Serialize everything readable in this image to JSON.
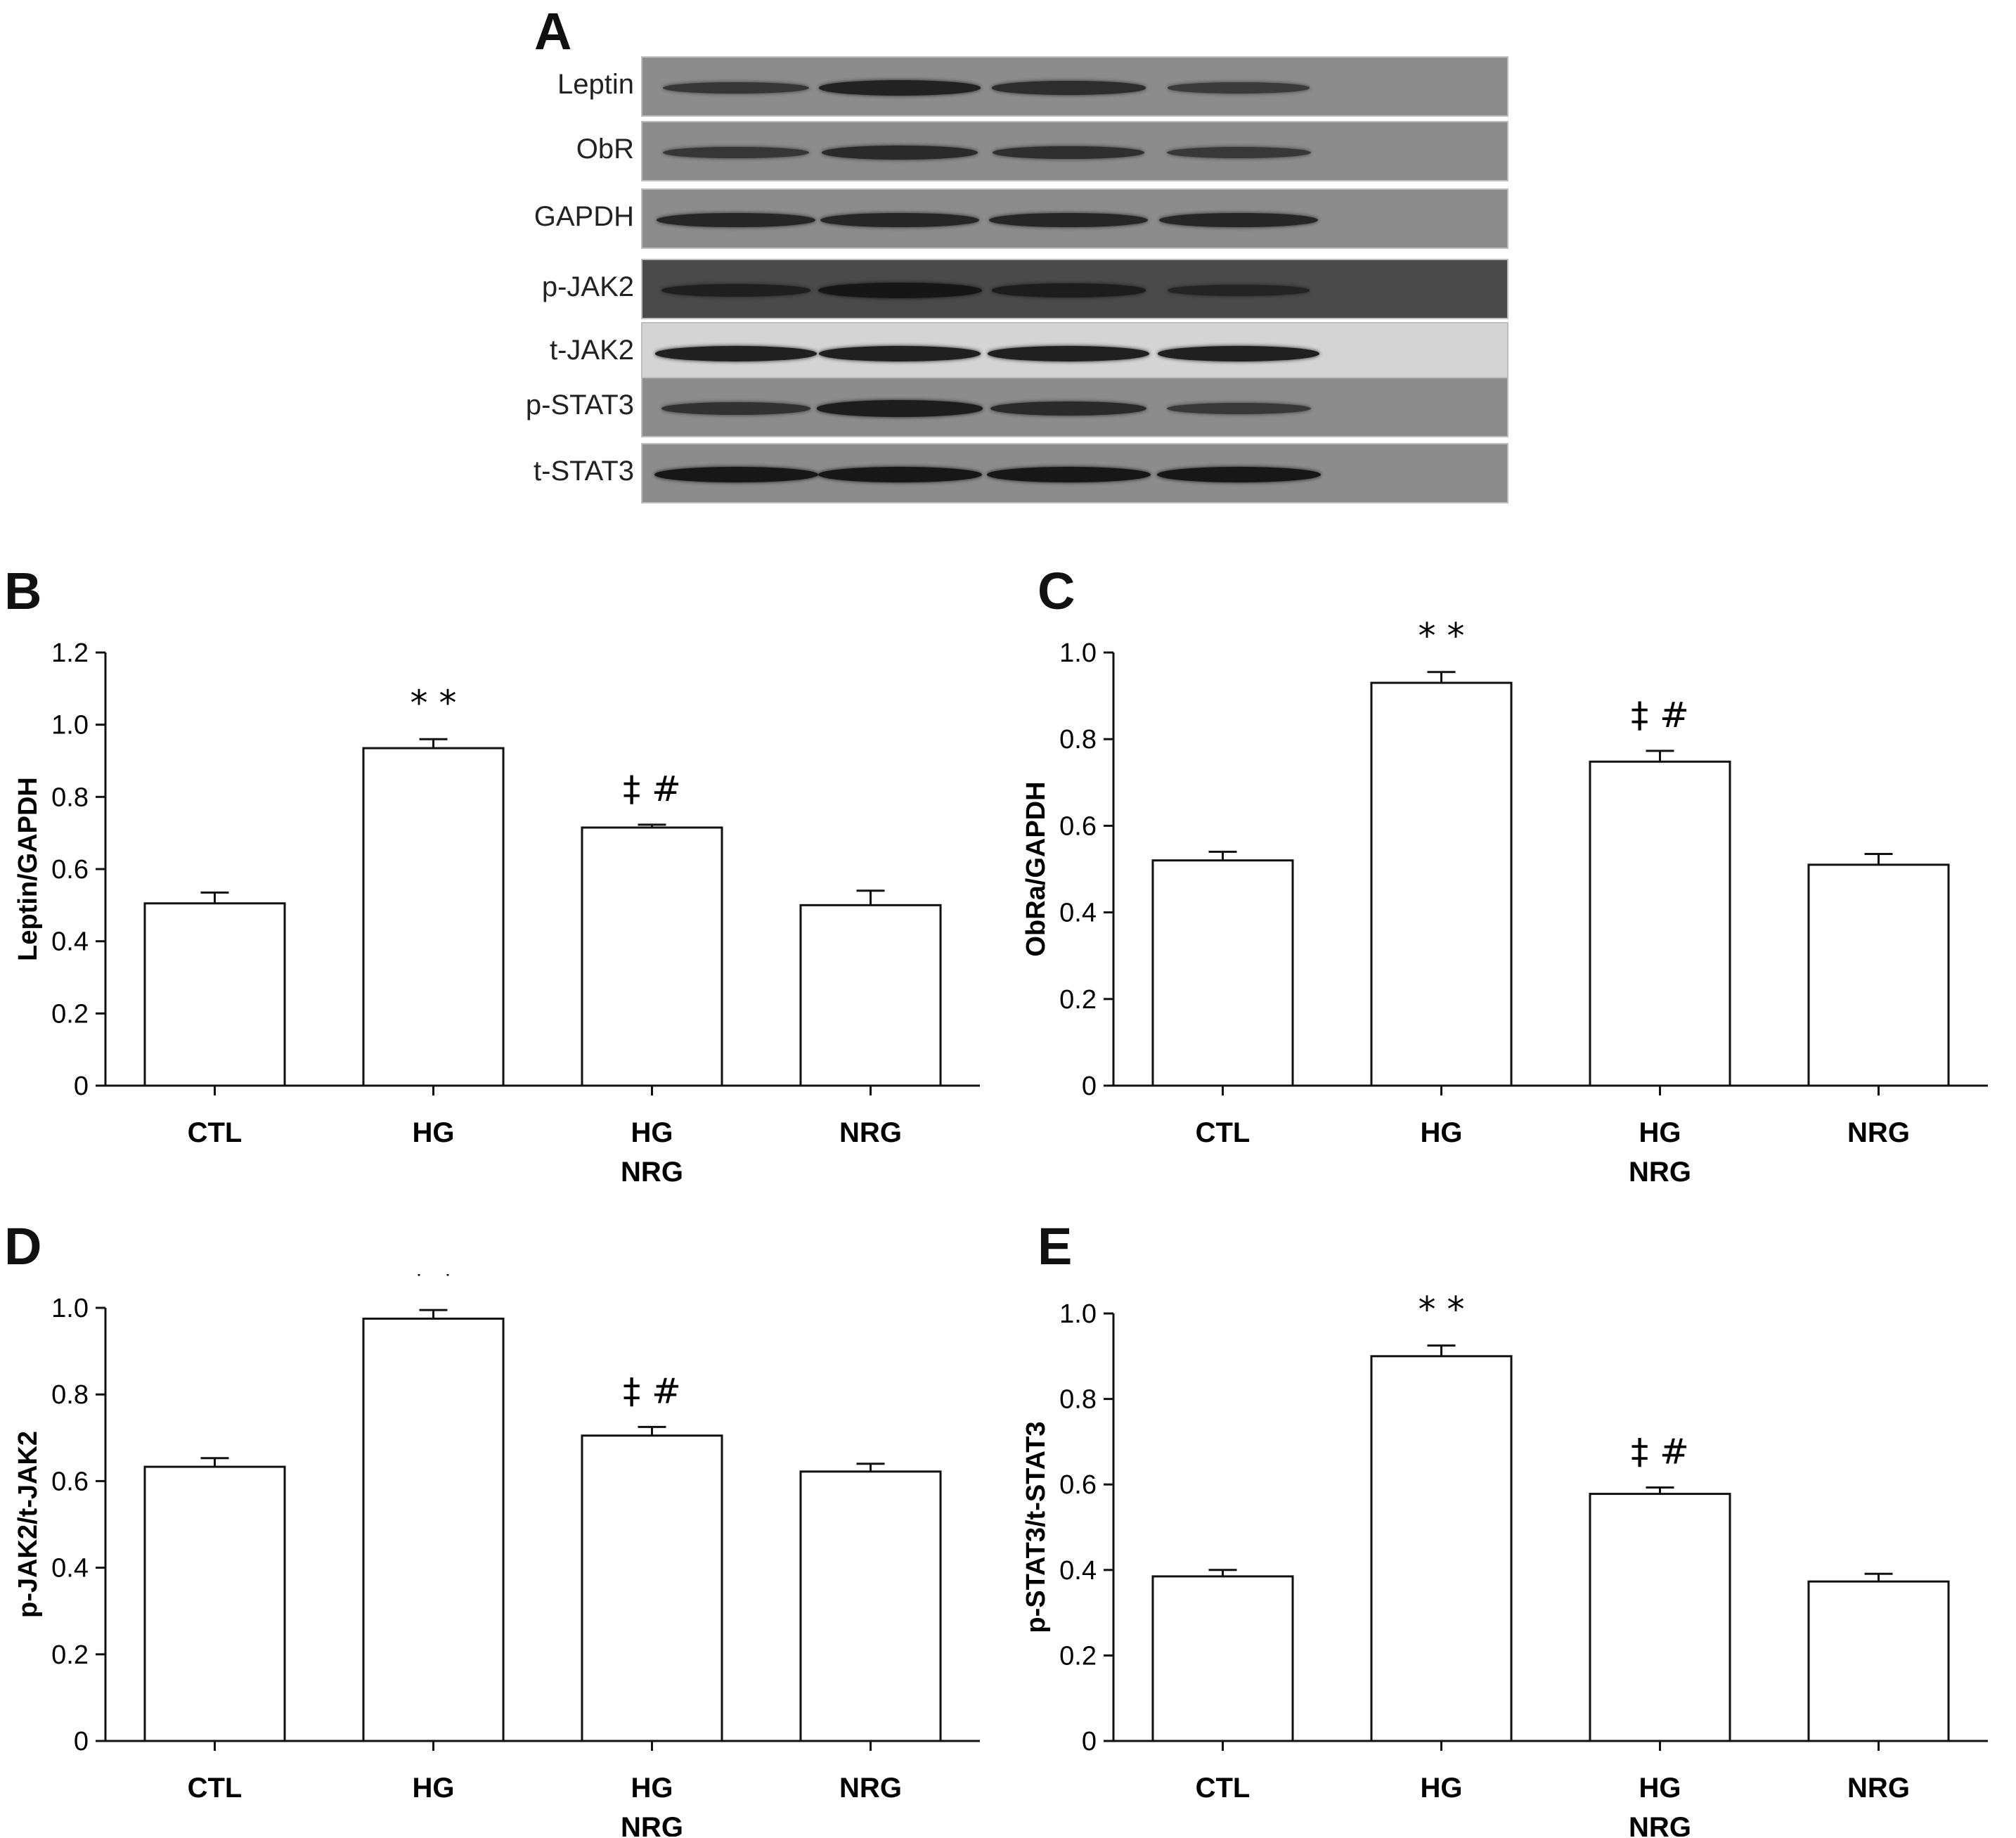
{
  "panel_letters": {
    "A": "A",
    "B": "B",
    "C": "C",
    "D": "D",
    "E": "E"
  },
  "blot": {
    "rows": [
      {
        "label": "Leptin",
        "background": "#8c8c8c",
        "band_color": "#1a1a1a",
        "intensity": [
          0.55,
          0.85,
          0.7,
          0.45
        ]
      },
      {
        "label": "ObR",
        "background": "#8c8c8c",
        "band_color": "#1a1a1a",
        "intensity": [
          0.55,
          0.75,
          0.65,
          0.5
        ]
      },
      {
        "label": "GAPDH",
        "background": "#8c8c8c",
        "band_color": "#1a1a1a",
        "intensity": [
          0.8,
          0.8,
          0.8,
          0.8
        ]
      },
      {
        "label": "p-JAK2",
        "background": "#4a4a4a",
        "band_color": "#141414",
        "intensity": [
          0.6,
          0.9,
          0.7,
          0.45
        ]
      },
      {
        "label": "t-JAK2",
        "background": "#d4d4d4",
        "band_color": "#111111",
        "intensity": [
          0.85,
          0.85,
          0.85,
          0.85
        ]
      },
      {
        "label": "p-STAT3",
        "background": "#8c8c8c",
        "band_color": "#1a1a1a",
        "intensity": [
          0.6,
          0.95,
          0.75,
          0.5
        ]
      },
      {
        "label": "t-STAT3",
        "background": "#8c8c8c",
        "band_color": "#111111",
        "intensity": [
          0.9,
          0.9,
          0.9,
          0.9
        ]
      }
    ]
  },
  "chart_data": [
    {
      "panel": "B",
      "type": "bar",
      "categories": [
        "CTL",
        "HG",
        "HG\nNRG",
        "NRG"
      ],
      "values": [
        0.505,
        0.935,
        0.715,
        0.5
      ],
      "errors": [
        0.03,
        0.025,
        0.008,
        0.04
      ],
      "annotations": [
        "",
        "* *",
        "‡ #",
        ""
      ],
      "ylabel": "Leptin/GAPDH",
      "ylim": [
        0,
        1.2
      ],
      "yticks": [
        0,
        0.2,
        0.4,
        0.6,
        0.8,
        1.0,
        1.2
      ],
      "ytick_labels": [
        "0",
        "0.2",
        "0.4",
        "0.6",
        "0.8",
        "1.0",
        "1.2"
      ]
    },
    {
      "panel": "C",
      "type": "bar",
      "categories": [
        "CTL",
        "HG",
        "HG\nNRG",
        "NRG"
      ],
      "values": [
        0.52,
        0.93,
        0.748,
        0.51
      ],
      "errors": [
        0.02,
        0.025,
        0.025,
        0.025
      ],
      "annotations": [
        "",
        "* *",
        "‡ #",
        ""
      ],
      "ylabel": "ObRa/GAPDH",
      "ylim": [
        0,
        1.0
      ],
      "yticks": [
        0,
        0.2,
        0.4,
        0.6,
        0.8,
        1.0
      ],
      "ytick_labels": [
        "0",
        "0.2",
        "0.4",
        "0.6",
        "0.8",
        "1.0"
      ]
    },
    {
      "panel": "D",
      "type": "bar",
      "categories": [
        "CTL",
        "HG",
        "HG\nNRG",
        "NRG"
      ],
      "values": [
        0.633,
        0.975,
        0.705,
        0.622
      ],
      "errors": [
        0.02,
        0.02,
        0.02,
        0.018
      ],
      "annotations": [
        "",
        "* *",
        "‡ #",
        ""
      ],
      "ylabel": "p-JAK2/t-JAK2",
      "ylim": [
        0,
        1.0
      ],
      "yticks": [
        0,
        0.2,
        0.4,
        0.6,
        0.8,
        1.0
      ],
      "ytick_labels": [
        "0",
        "0.2",
        "0.4",
        "0.6",
        "0.8",
        "1.0"
      ]
    },
    {
      "panel": "E",
      "type": "bar",
      "categories": [
        "CTL",
        "HG",
        "HG\nNRG",
        "NRG"
      ],
      "values": [
        0.385,
        0.9,
        0.578,
        0.373
      ],
      "errors": [
        0.015,
        0.025,
        0.015,
        0.018
      ],
      "annotations": [
        "",
        "* *",
        "‡ #",
        ""
      ],
      "ylabel": "p-STAT3/t-STAT3",
      "ylim": [
        0,
        1.0
      ],
      "yticks": [
        0,
        0.2,
        0.4,
        0.6,
        0.8,
        1.0
      ],
      "ytick_labels": [
        "0",
        "0.2",
        "0.4",
        "0.6",
        "0.8",
        "1.0"
      ]
    }
  ]
}
